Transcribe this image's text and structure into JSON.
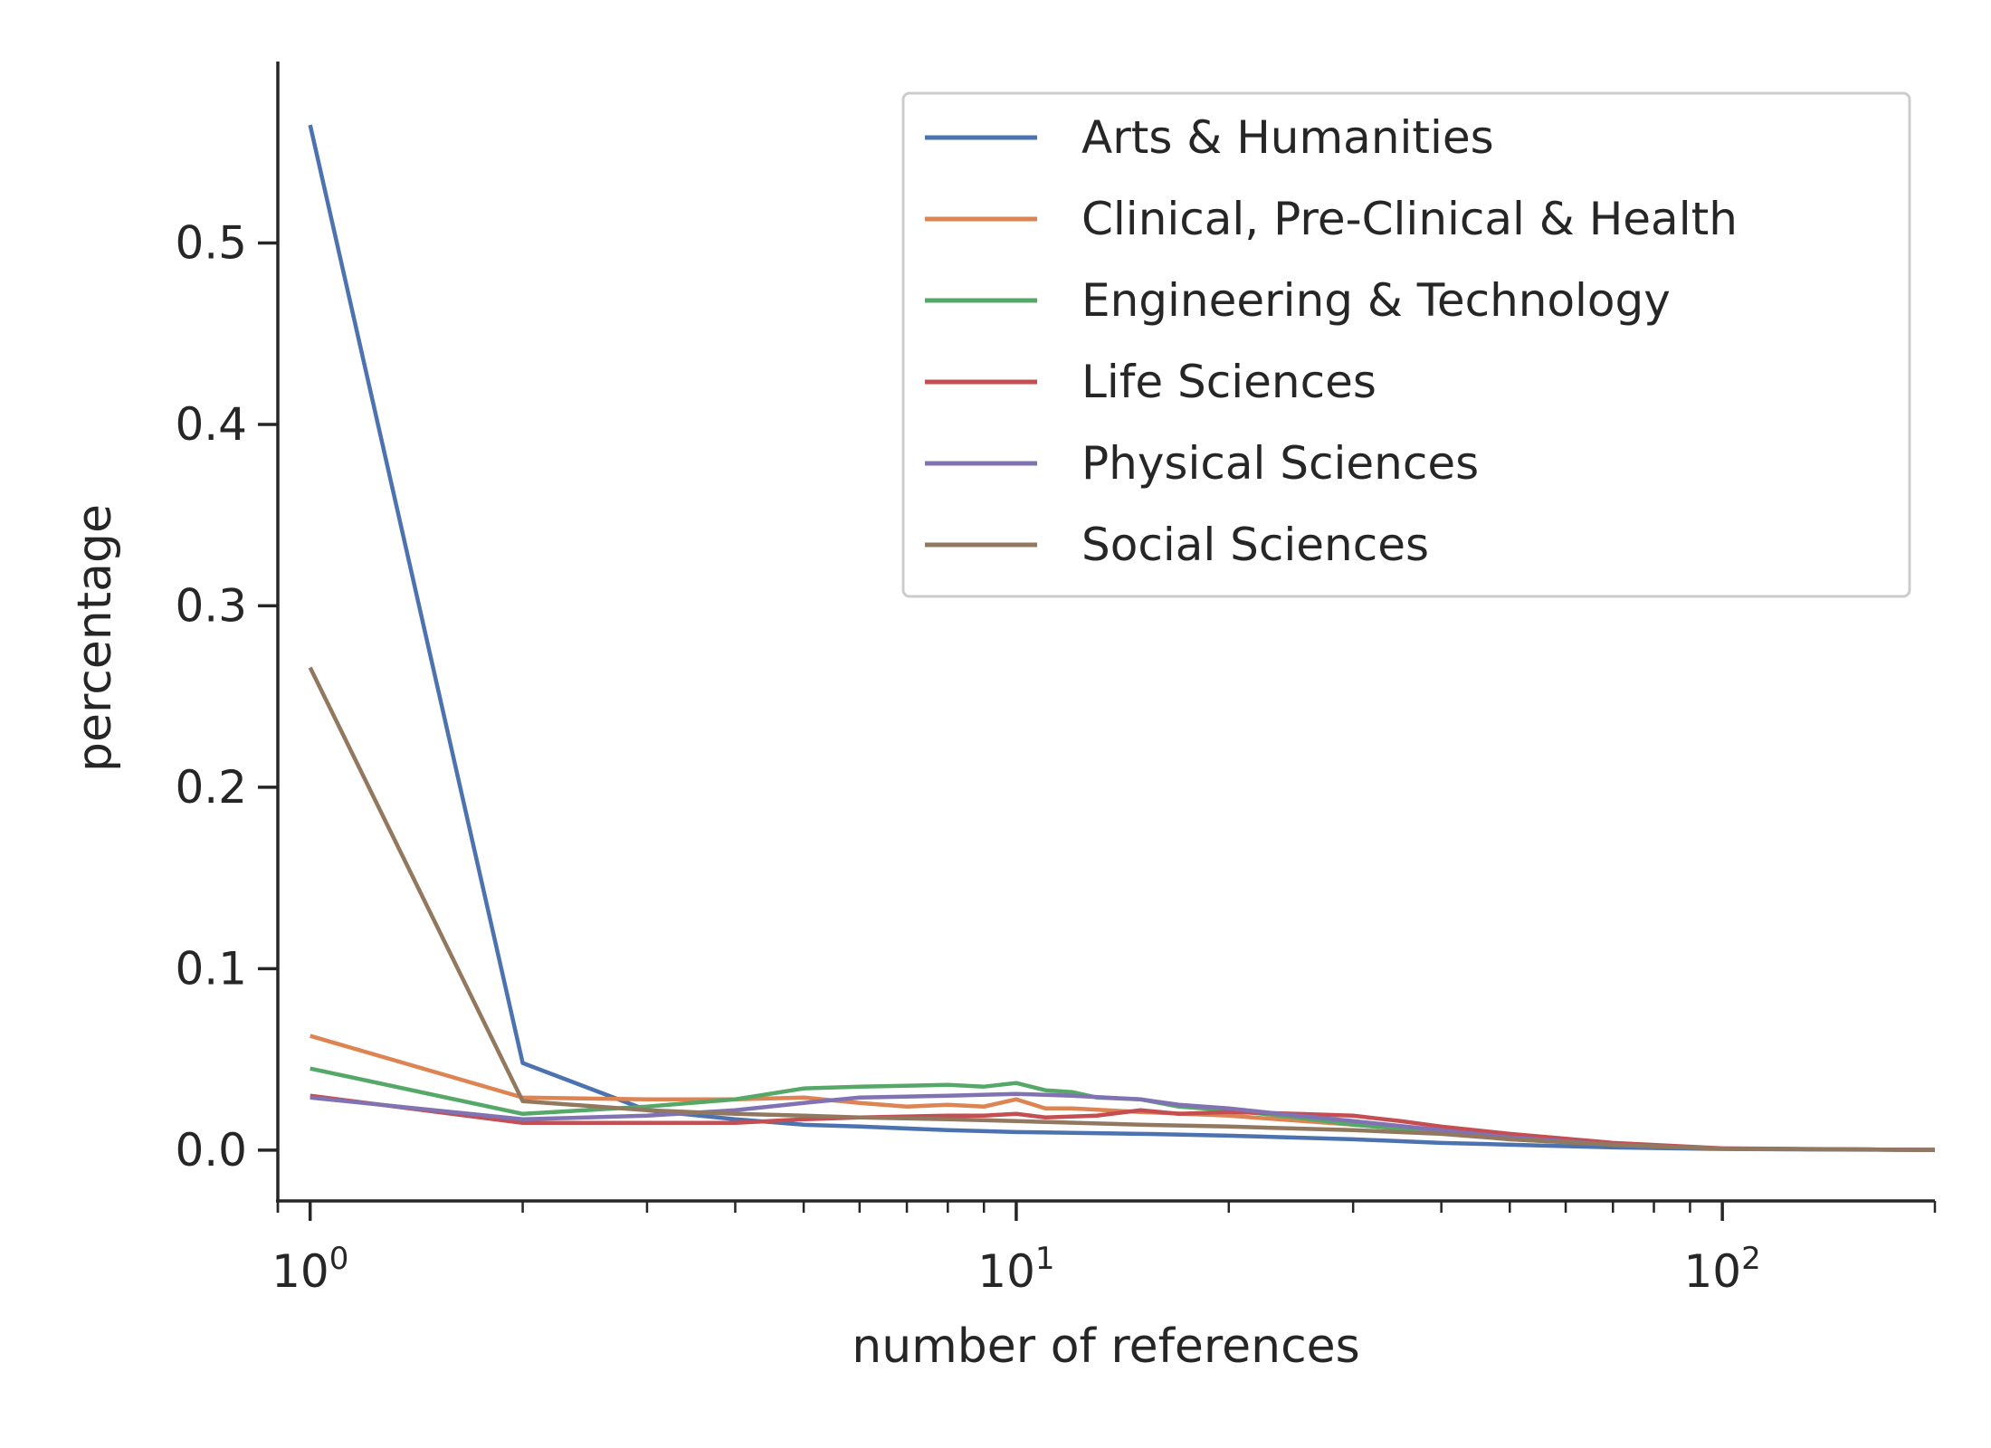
{
  "chart_data": {
    "type": "line",
    "xlabel": "number of references",
    "ylabel": "percentage",
    "xscale": "log",
    "xlim": [
      0.9,
      200
    ],
    "ylim": [
      -0.028,
      0.6
    ],
    "x_ticks": [
      1,
      10,
      100
    ],
    "x_tick_labels": [
      {
        "base": "10",
        "exp": "0"
      },
      {
        "base": "10",
        "exp": "1"
      },
      {
        "base": "10",
        "exp": "2"
      }
    ],
    "y_ticks": [
      0.0,
      0.1,
      0.2,
      0.3,
      0.4,
      0.5
    ],
    "y_tick_labels": [
      "0.0",
      "0.1",
      "0.2",
      "0.3",
      "0.4",
      "0.5"
    ],
    "grid": false,
    "legend_position": "top-right",
    "series": [
      {
        "name": "Arts & Humanities",
        "color": "#4c72b0",
        "points": [
          [
            1,
            0.565
          ],
          [
            2,
            0.048
          ],
          [
            3,
            0.022
          ],
          [
            4,
            0.017
          ],
          [
            5,
            0.014
          ],
          [
            6,
            0.013
          ],
          [
            8,
            0.011
          ],
          [
            10,
            0.01
          ],
          [
            15,
            0.009
          ],
          [
            20,
            0.008
          ],
          [
            30,
            0.006
          ],
          [
            40,
            0.004
          ],
          [
            50,
            0.003
          ],
          [
            70,
            0.0015
          ],
          [
            100,
            0.0006
          ],
          [
            200,
            0.0001
          ]
        ]
      },
      {
        "name": "Clinical, Pre-Clinical & Health",
        "color": "#dd8452",
        "points": [
          [
            1,
            0.063
          ],
          [
            2,
            0.029
          ],
          [
            3,
            0.028
          ],
          [
            4,
            0.028
          ],
          [
            5,
            0.029
          ],
          [
            6,
            0.026
          ],
          [
            7,
            0.024
          ],
          [
            8,
            0.025
          ],
          [
            9,
            0.024
          ],
          [
            10,
            0.028
          ],
          [
            11,
            0.023
          ],
          [
            12,
            0.023
          ],
          [
            15,
            0.021
          ],
          [
            20,
            0.019
          ],
          [
            30,
            0.014
          ],
          [
            40,
            0.01
          ],
          [
            50,
            0.007
          ],
          [
            70,
            0.003
          ],
          [
            100,
            0.0008
          ],
          [
            200,
            0.0001
          ]
        ]
      },
      {
        "name": "Engineering & Technology",
        "color": "#55a868",
        "points": [
          [
            1,
            0.045
          ],
          [
            2,
            0.02
          ],
          [
            3,
            0.024
          ],
          [
            4,
            0.028
          ],
          [
            5,
            0.034
          ],
          [
            6,
            0.035
          ],
          [
            8,
            0.036
          ],
          [
            9,
            0.035
          ],
          [
            10,
            0.037
          ],
          [
            11,
            0.033
          ],
          [
            12,
            0.032
          ],
          [
            13,
            0.029
          ],
          [
            15,
            0.028
          ],
          [
            17,
            0.024
          ],
          [
            20,
            0.022
          ],
          [
            25,
            0.018
          ],
          [
            30,
            0.014
          ],
          [
            40,
            0.01
          ],
          [
            50,
            0.006
          ],
          [
            70,
            0.003
          ],
          [
            100,
            0.0008
          ],
          [
            200,
            0.0001
          ]
        ]
      },
      {
        "name": "Life Sciences",
        "color": "#c44e52",
        "points": [
          [
            1,
            0.03
          ],
          [
            2,
            0.015
          ],
          [
            3,
            0.015
          ],
          [
            4,
            0.015
          ],
          [
            5,
            0.017
          ],
          [
            6,
            0.018
          ],
          [
            8,
            0.019
          ],
          [
            9,
            0.019
          ],
          [
            10,
            0.02
          ],
          [
            11,
            0.018
          ],
          [
            13,
            0.019
          ],
          [
            15,
            0.022
          ],
          [
            17,
            0.02
          ],
          [
            20,
            0.021
          ],
          [
            25,
            0.02
          ],
          [
            30,
            0.019
          ],
          [
            35,
            0.016
          ],
          [
            40,
            0.013
          ],
          [
            50,
            0.009
          ],
          [
            70,
            0.004
          ],
          [
            100,
            0.001
          ],
          [
            200,
            0.0001
          ]
        ]
      },
      {
        "name": "Physical Sciences",
        "color": "#8172b3",
        "points": [
          [
            1,
            0.029
          ],
          [
            2,
            0.017
          ],
          [
            3,
            0.019
          ],
          [
            4,
            0.022
          ],
          [
            5,
            0.026
          ],
          [
            6,
            0.029
          ],
          [
            8,
            0.03
          ],
          [
            10,
            0.031
          ],
          [
            12,
            0.03
          ],
          [
            15,
            0.028
          ],
          [
            17,
            0.025
          ],
          [
            20,
            0.023
          ],
          [
            25,
            0.019
          ],
          [
            30,
            0.016
          ],
          [
            40,
            0.011
          ],
          [
            50,
            0.007
          ],
          [
            70,
            0.003
          ],
          [
            100,
            0.0008
          ],
          [
            200,
            0.0001
          ]
        ]
      },
      {
        "name": "Social Sciences",
        "color": "#937860",
        "points": [
          [
            1,
            0.266
          ],
          [
            2,
            0.027
          ],
          [
            3,
            0.022
          ],
          [
            4,
            0.02
          ],
          [
            5,
            0.019
          ],
          [
            6,
            0.018
          ],
          [
            8,
            0.017
          ],
          [
            10,
            0.016
          ],
          [
            15,
            0.014
          ],
          [
            20,
            0.013
          ],
          [
            30,
            0.011
          ],
          [
            40,
            0.009
          ],
          [
            50,
            0.006
          ],
          [
            70,
            0.003
          ],
          [
            100,
            0.0008
          ],
          [
            200,
            0.0001
          ]
        ]
      }
    ]
  }
}
